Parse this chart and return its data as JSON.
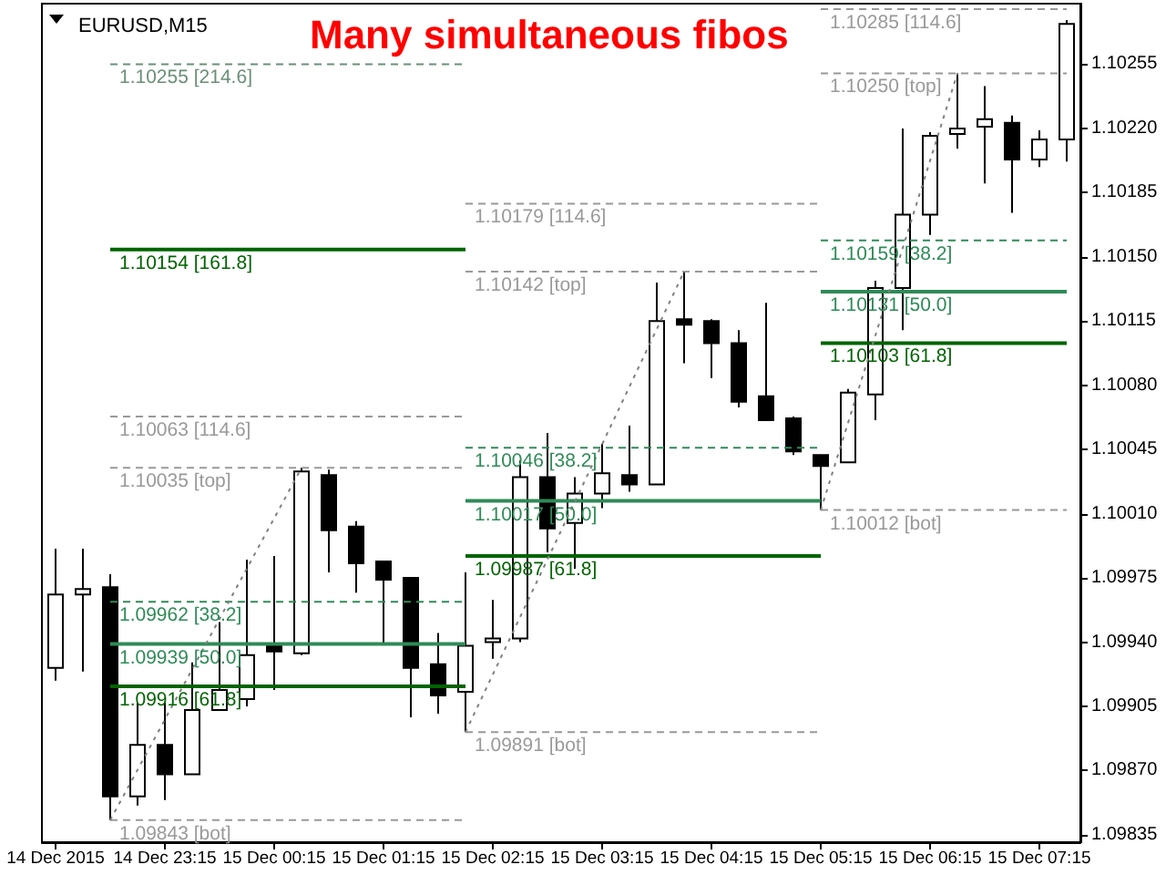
{
  "chart_data": {
    "type": "candlestick",
    "title": "Many simultaneous fibos",
    "subtitle": "EURUSD,M15",
    "categories": [
      "14 Dec 2015",
      null,
      null,
      null,
      "14 Dec 23:15",
      null,
      null,
      null,
      "15 Dec 00:15",
      null,
      null,
      null,
      "15 Dec 01:15",
      null,
      null,
      null,
      "15 Dec 02:15",
      null,
      null,
      null,
      "15 Dec 03:15",
      null,
      null,
      null,
      "15 Dec 04:15",
      null,
      null,
      null,
      "15 Dec 05:15",
      null,
      null,
      null,
      "15 Dec 06:15",
      null,
      null,
      null,
      "15 Dec 07:15",
      null
    ],
    "ohlc": [
      [
        1.09926,
        1.09991,
        1.09919,
        1.09966
      ],
      [
        1.09966,
        1.09991,
        1.09924,
        1.09969
      ],
      [
        1.0997,
        1.09977,
        1.09843,
        1.09856
      ],
      [
        1.09856,
        1.09907,
        1.09851,
        1.09884
      ],
      [
        1.09884,
        1.09907,
        1.09854,
        1.09868
      ],
      [
        1.09868,
        1.09929,
        1.09868,
        1.09903
      ],
      [
        1.09903,
        1.09951,
        1.09903,
        1.09914
      ],
      [
        1.09909,
        1.09985,
        1.09905,
        1.09933
      ],
      [
        1.09938,
        1.09987,
        1.09914,
        1.09935
      ],
      [
        1.09934,
        1.10035,
        1.09933,
        1.10033
      ],
      [
        1.10031,
        1.10034,
        1.09978,
        1.10001
      ],
      [
        1.10003,
        1.10006,
        1.09967,
        1.09983
      ],
      [
        1.09984,
        1.09984,
        1.09939,
        1.09974
      ],
      [
        1.09975,
        1.09975,
        1.09899,
        1.09926
      ],
      [
        1.09928,
        1.09945,
        1.09901,
        1.09911
      ],
      [
        1.09913,
        1.09978,
        1.09891,
        1.09938
      ],
      [
        1.0994,
        1.09963,
        1.09931,
        1.09942
      ],
      [
        1.09942,
        1.10039,
        1.0994,
        1.1003
      ],
      [
        1.1003,
        1.10054,
        1.09989,
        1.10002
      ],
      [
        1.10005,
        1.1003,
        1.0998,
        1.10021
      ],
      [
        1.10021,
        1.10048,
        1.10013,
        1.10032
      ],
      [
        1.10031,
        1.10058,
        1.10022,
        1.10026
      ],
      [
        1.10026,
        1.10136,
        1.10026,
        1.10115
      ],
      [
        1.10116,
        1.10142,
        1.10092,
        1.10113
      ],
      [
        1.10115,
        1.10116,
        1.10084,
        1.10103
      ],
      [
        1.10103,
        1.1011,
        1.10068,
        1.10071
      ],
      [
        1.10074,
        1.10125,
        1.10061,
        1.10061
      ],
      [
        1.10062,
        1.10063,
        1.10042,
        1.10044
      ],
      [
        1.10042,
        1.10042,
        1.10012,
        1.10036
      ],
      [
        1.10038,
        1.10078,
        1.10038,
        1.10076
      ],
      [
        1.10075,
        1.10137,
        1.10061,
        1.10133
      ],
      [
        1.10133,
        1.1022,
        1.1011,
        1.10173
      ],
      [
        1.10173,
        1.10218,
        1.10162,
        1.10216
      ],
      [
        1.10217,
        1.1025,
        1.10209,
        1.1022
      ],
      [
        1.10221,
        1.10243,
        1.1019,
        1.10225
      ],
      [
        1.10223,
        1.10227,
        1.10174,
        1.10203
      ],
      [
        1.10203,
        1.10219,
        1.10199,
        1.10214
      ],
      [
        1.10214,
        1.10279,
        1.10202,
        1.10277
      ]
    ],
    "series": [
      {
        "type": "line",
        "name": "1.10255 [214.6]",
        "color": "#6b8f76",
        "line_style": "dashed",
        "values": [
          null,
          null,
          1.10255,
          1.10255,
          1.10255,
          1.10255,
          1.10255,
          1.10255,
          1.10255,
          1.10255,
          1.10255,
          1.10255,
          1.10255,
          1.10255,
          1.10255,
          1.10255,
          null,
          null,
          null,
          null,
          null,
          null,
          null,
          null,
          null,
          null,
          null,
          null,
          null,
          null,
          null,
          null,
          null,
          null,
          null,
          null,
          null,
          null
        ]
      },
      {
        "type": "line",
        "name": "1.10154 [161.8]",
        "color": "#006400",
        "line_style": "solid",
        "values": [
          null,
          null,
          1.10154,
          1.10154,
          1.10154,
          1.10154,
          1.10154,
          1.10154,
          1.10154,
          1.10154,
          1.10154,
          1.10154,
          1.10154,
          1.10154,
          1.10154,
          1.10154,
          null,
          null,
          null,
          null,
          null,
          null,
          null,
          null,
          null,
          null,
          null,
          null,
          null,
          null,
          null,
          null,
          null,
          null,
          null,
          null,
          null,
          null
        ]
      },
      {
        "type": "line",
        "name": "1.10063 [114.6]",
        "color": "#999999",
        "line_style": "dashed",
        "values": [
          null,
          null,
          1.10063,
          1.10063,
          1.10063,
          1.10063,
          1.10063,
          1.10063,
          1.10063,
          1.10063,
          1.10063,
          1.10063,
          1.10063,
          1.10063,
          1.10063,
          1.10063,
          null,
          null,
          null,
          null,
          null,
          null,
          null,
          null,
          null,
          null,
          null,
          null,
          null,
          null,
          null,
          null,
          null,
          null,
          null,
          null,
          null,
          null
        ]
      },
      {
        "type": "line",
        "name": "1.10035 [top]",
        "color": "#999999",
        "line_style": "dashed",
        "values": [
          null,
          null,
          1.10035,
          1.10035,
          1.10035,
          1.10035,
          1.10035,
          1.10035,
          1.10035,
          1.10035,
          1.10035,
          1.10035,
          1.10035,
          1.10035,
          1.10035,
          1.10035,
          null,
          null,
          null,
          null,
          null,
          null,
          null,
          null,
          null,
          null,
          null,
          null,
          null,
          null,
          null,
          null,
          null,
          null,
          null,
          null,
          null,
          null
        ]
      },
      {
        "type": "line",
        "name": "1.09962 [38.2]",
        "color": "#2e8b57",
        "line_style": "dashed",
        "values": [
          null,
          null,
          1.09962,
          1.09962,
          1.09962,
          1.09962,
          1.09962,
          1.09962,
          1.09962,
          1.09962,
          1.09962,
          1.09962,
          1.09962,
          1.09962,
          1.09962,
          1.09962,
          null,
          null,
          null,
          null,
          null,
          null,
          null,
          null,
          null,
          null,
          null,
          null,
          null,
          null,
          null,
          null,
          null,
          null,
          null,
          null,
          null,
          null
        ]
      },
      {
        "type": "line",
        "name": "1.09939 [50.0]",
        "color": "#2e8b57",
        "line_style": "solid",
        "values": [
          null,
          null,
          1.09939,
          1.09939,
          1.09939,
          1.09939,
          1.09939,
          1.09939,
          1.09939,
          1.09939,
          1.09939,
          1.09939,
          1.09939,
          1.09939,
          1.09939,
          1.09939,
          null,
          null,
          null,
          null,
          null,
          null,
          null,
          null,
          null,
          null,
          null,
          null,
          null,
          null,
          null,
          null,
          null,
          null,
          null,
          null,
          null,
          null
        ]
      },
      {
        "type": "line",
        "name": "1.09916 [61.8]",
        "color": "#006400",
        "line_style": "solid",
        "values": [
          null,
          null,
          1.09916,
          1.09916,
          1.09916,
          1.09916,
          1.09916,
          1.09916,
          1.09916,
          1.09916,
          1.09916,
          1.09916,
          1.09916,
          1.09916,
          1.09916,
          1.09916,
          null,
          null,
          null,
          null,
          null,
          null,
          null,
          null,
          null,
          null,
          null,
          null,
          null,
          null,
          null,
          null,
          null,
          null,
          null,
          null,
          null,
          null
        ]
      },
      {
        "type": "line",
        "name": "1.09843 [bot]",
        "color": "#999999",
        "line_style": "dashed",
        "values": [
          null,
          null,
          1.09843,
          1.09843,
          1.09843,
          1.09843,
          1.09843,
          1.09843,
          1.09843,
          1.09843,
          1.09843,
          1.09843,
          1.09843,
          1.09843,
          1.09843,
          1.09843,
          null,
          null,
          null,
          null,
          null,
          null,
          null,
          null,
          null,
          null,
          null,
          null,
          null,
          null,
          null,
          null,
          null,
          null,
          null,
          null,
          null,
          null
        ]
      },
      {
        "type": "line",
        "name": "1.10179 [114.6]",
        "color": "#999999",
        "line_style": "dashed",
        "values": [
          null,
          null,
          null,
          null,
          null,
          null,
          null,
          null,
          null,
          null,
          null,
          null,
          null,
          null,
          null,
          1.10179,
          1.10179,
          1.10179,
          1.10179,
          1.10179,
          1.10179,
          1.10179,
          1.10179,
          1.10179,
          1.10179,
          1.10179,
          1.10179,
          1.10179,
          1.10179,
          null,
          null,
          null,
          null,
          null,
          null,
          null,
          null,
          null
        ]
      },
      {
        "type": "line",
        "name": "1.10142 [top]",
        "color": "#999999",
        "line_style": "dashed",
        "values": [
          null,
          null,
          null,
          null,
          null,
          null,
          null,
          null,
          null,
          null,
          null,
          null,
          null,
          null,
          null,
          1.10142,
          1.10142,
          1.10142,
          1.10142,
          1.10142,
          1.10142,
          1.10142,
          1.10142,
          1.10142,
          1.10142,
          1.10142,
          1.10142,
          1.10142,
          1.10142,
          null,
          null,
          null,
          null,
          null,
          null,
          null,
          null,
          null
        ]
      },
      {
        "type": "line",
        "name": "1.10046 [38.2]",
        "color": "#2e8b57",
        "line_style": "dashed",
        "values": [
          null,
          null,
          null,
          null,
          null,
          null,
          null,
          null,
          null,
          null,
          null,
          null,
          null,
          null,
          null,
          1.10046,
          1.10046,
          1.10046,
          1.10046,
          1.10046,
          1.10046,
          1.10046,
          1.10046,
          1.10046,
          1.10046,
          1.10046,
          1.10046,
          1.10046,
          1.10046,
          null,
          null,
          null,
          null,
          null,
          null,
          null,
          null,
          null
        ]
      },
      {
        "type": "line",
        "name": "1.10017 [50.0]",
        "color": "#2e8b57",
        "line_style": "solid",
        "values": [
          null,
          null,
          null,
          null,
          null,
          null,
          null,
          null,
          null,
          null,
          null,
          null,
          null,
          null,
          null,
          1.10017,
          1.10017,
          1.10017,
          1.10017,
          1.10017,
          1.10017,
          1.10017,
          1.10017,
          1.10017,
          1.10017,
          1.10017,
          1.10017,
          1.10017,
          1.10017,
          null,
          null,
          null,
          null,
          null,
          null,
          null,
          null,
          null
        ]
      },
      {
        "type": "line",
        "name": "1.09987 [61.8]",
        "color": "#006400",
        "line_style": "solid",
        "values": [
          null,
          null,
          null,
          null,
          null,
          null,
          null,
          null,
          null,
          null,
          null,
          null,
          null,
          null,
          null,
          1.09987,
          1.09987,
          1.09987,
          1.09987,
          1.09987,
          1.09987,
          1.09987,
          1.09987,
          1.09987,
          1.09987,
          1.09987,
          1.09987,
          1.09987,
          1.09987,
          null,
          null,
          null,
          null,
          null,
          null,
          null,
          null,
          null
        ]
      },
      {
        "type": "line",
        "name": "1.09891 [bot]",
        "color": "#999999",
        "line_style": "dashed",
        "values": [
          null,
          null,
          null,
          null,
          null,
          null,
          null,
          null,
          null,
          null,
          null,
          null,
          null,
          null,
          null,
          1.09891,
          1.09891,
          1.09891,
          1.09891,
          1.09891,
          1.09891,
          1.09891,
          1.09891,
          1.09891,
          1.09891,
          1.09891,
          1.09891,
          1.09891,
          1.09891,
          null,
          null,
          null,
          null,
          null,
          null,
          null,
          null,
          null
        ]
      },
      {
        "type": "line",
        "name": "1.10285 [114.6]",
        "color": "#999999",
        "line_style": "dashed",
        "values": [
          null,
          null,
          null,
          null,
          null,
          null,
          null,
          null,
          null,
          null,
          null,
          null,
          null,
          null,
          null,
          null,
          null,
          null,
          null,
          null,
          null,
          null,
          null,
          null,
          null,
          null,
          null,
          null,
          1.10285,
          1.10285,
          1.10285,
          1.10285,
          1.10285,
          1.10285,
          1.10285,
          1.10285,
          1.10285,
          1.10285
        ]
      },
      {
        "type": "line",
        "name": "1.10250 [top]",
        "color": "#999999",
        "line_style": "dashed",
        "values": [
          null,
          null,
          null,
          null,
          null,
          null,
          null,
          null,
          null,
          null,
          null,
          null,
          null,
          null,
          null,
          null,
          null,
          null,
          null,
          null,
          null,
          null,
          null,
          null,
          null,
          null,
          null,
          null,
          1.1025,
          1.1025,
          1.1025,
          1.1025,
          1.1025,
          1.1025,
          1.1025,
          1.1025,
          1.1025,
          1.1025
        ]
      },
      {
        "type": "line",
        "name": "1.10159 [38.2]",
        "color": "#2e8b57",
        "line_style": "dashed",
        "values": [
          null,
          null,
          null,
          null,
          null,
          null,
          null,
          null,
          null,
          null,
          null,
          null,
          null,
          null,
          null,
          null,
          null,
          null,
          null,
          null,
          null,
          null,
          null,
          null,
          null,
          null,
          null,
          null,
          1.10159,
          1.10159,
          1.10159,
          1.10159,
          1.10159,
          1.10159,
          1.10159,
          1.10159,
          1.10159,
          1.10159
        ]
      },
      {
        "type": "line",
        "name": "1.10131 [50.0]",
        "color": "#2e8b57",
        "line_style": "solid",
        "values": [
          null,
          null,
          null,
          null,
          null,
          null,
          null,
          null,
          null,
          null,
          null,
          null,
          null,
          null,
          null,
          null,
          null,
          null,
          null,
          null,
          null,
          null,
          null,
          null,
          null,
          null,
          null,
          null,
          1.10131,
          1.10131,
          1.10131,
          1.10131,
          1.10131,
          1.10131,
          1.10131,
          1.10131,
          1.10131,
          1.10131
        ]
      },
      {
        "type": "line",
        "name": "1.10103 [61.8]",
        "color": "#006400",
        "line_style": "solid",
        "values": [
          null,
          null,
          null,
          null,
          null,
          null,
          null,
          null,
          null,
          null,
          null,
          null,
          null,
          null,
          null,
          null,
          null,
          null,
          null,
          null,
          null,
          null,
          null,
          null,
          null,
          null,
          null,
          null,
          1.10103,
          1.10103,
          1.10103,
          1.10103,
          1.10103,
          1.10103,
          1.10103,
          1.10103,
          1.10103,
          1.10103
        ]
      },
      {
        "type": "line",
        "name": "1.10012 [bot]",
        "color": "#999999",
        "line_style": "dashed",
        "values": [
          null,
          null,
          null,
          null,
          null,
          null,
          null,
          null,
          null,
          null,
          null,
          null,
          null,
          null,
          null,
          null,
          null,
          null,
          null,
          null,
          null,
          null,
          null,
          null,
          null,
          null,
          null,
          null,
          1.10012,
          1.10012,
          1.10012,
          1.10012,
          1.10012,
          1.10012,
          1.10012,
          1.10012,
          1.10012,
          1.10012
        ]
      },
      {
        "type": "line",
        "color": "#808080",
        "line_style": "dotted",
        "values": [
          null,
          null,
          1.09843,
          null,
          null,
          null,
          null,
          null,
          null,
          1.10035,
          null,
          null,
          null,
          null,
          null,
          null,
          null,
          null,
          null,
          null,
          null,
          null,
          null,
          null,
          null,
          null,
          null,
          null,
          null,
          null,
          null,
          null,
          null,
          null,
          null,
          null,
          null,
          null
        ]
      },
      {
        "type": "line",
        "color": "#808080",
        "line_style": "dotted",
        "values": [
          null,
          null,
          null,
          null,
          null,
          null,
          null,
          null,
          null,
          null,
          null,
          null,
          null,
          null,
          null,
          1.09891,
          null,
          null,
          null,
          null,
          null,
          null,
          null,
          1.10142,
          null,
          null,
          null,
          null,
          null,
          null,
          null,
          null,
          null,
          null,
          null,
          null,
          null,
          null
        ]
      },
      {
        "type": "line",
        "color": "#808080",
        "line_style": "dotted",
        "values": [
          null,
          null,
          null,
          null,
          null,
          null,
          null,
          null,
          null,
          null,
          null,
          null,
          null,
          null,
          null,
          null,
          null,
          null,
          null,
          null,
          null,
          null,
          null,
          null,
          null,
          null,
          null,
          null,
          1.10012,
          null,
          null,
          null,
          null,
          1.1025,
          null,
          null,
          null,
          null
        ]
      }
    ],
    "ylim": [
      1.09831,
      1.10288
    ],
    "yticks": [
      1.09835,
      {
        "value": 1.0987,
        "label": "1.09870"
      },
      1.09905,
      {
        "value": 1.0994,
        "label": "1.09940"
      },
      1.09975,
      {
        "value": 1.1001,
        "label": "1.10010"
      },
      1.10045,
      {
        "value": 1.1008,
        "label": "1.10080"
      },
      1.10115,
      {
        "value": 1.1015,
        "label": "1.10150"
      },
      1.10185,
      {
        "value": 1.1022,
        "label": "1.10220"
      },
      1.10255
    ]
  }
}
